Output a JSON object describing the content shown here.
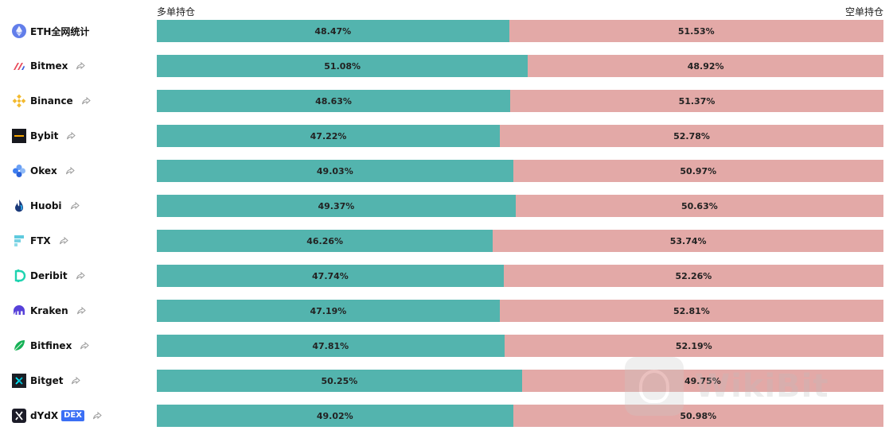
{
  "headers": {
    "long_label": "多单持仓",
    "short_label": "空单持仓"
  },
  "colors": {
    "long": "#53b4ae",
    "short": "#e3a9a7"
  },
  "watermark": {
    "text": "WikiBit"
  },
  "exchanges": [
    {
      "name": "ETH全网统计",
      "icon": "ethereum-icon",
      "long_pct": 48.47,
      "short_pct": 51.53,
      "long_label": "48.47%",
      "short_label": "51.53%",
      "share": false,
      "badge": ""
    },
    {
      "name": "Bitmex",
      "icon": "bitmex-icon",
      "long_pct": 51.08,
      "short_pct": 48.92,
      "long_label": "51.08%",
      "short_label": "48.92%",
      "share": true,
      "badge": ""
    },
    {
      "name": "Binance",
      "icon": "binance-icon",
      "long_pct": 48.63,
      "short_pct": 51.37,
      "long_label": "48.63%",
      "short_label": "51.37%",
      "share": true,
      "badge": ""
    },
    {
      "name": "Bybit",
      "icon": "bybit-icon",
      "long_pct": 47.22,
      "short_pct": 52.78,
      "long_label": "47.22%",
      "short_label": "52.78%",
      "share": true,
      "badge": ""
    },
    {
      "name": "Okex",
      "icon": "okex-icon",
      "long_pct": 49.03,
      "short_pct": 50.97,
      "long_label": "49.03%",
      "short_label": "50.97%",
      "share": true,
      "badge": ""
    },
    {
      "name": "Huobi",
      "icon": "huobi-icon",
      "long_pct": 49.37,
      "short_pct": 50.63,
      "long_label": "49.37%",
      "short_label": "50.63%",
      "share": true,
      "badge": ""
    },
    {
      "name": "FTX",
      "icon": "ftx-icon",
      "long_pct": 46.26,
      "short_pct": 53.74,
      "long_label": "46.26%",
      "short_label": "53.74%",
      "share": true,
      "badge": ""
    },
    {
      "name": "Deribit",
      "icon": "deribit-icon",
      "long_pct": 47.74,
      "short_pct": 52.26,
      "long_label": "47.74%",
      "short_label": "52.26%",
      "share": true,
      "badge": ""
    },
    {
      "name": "Kraken",
      "icon": "kraken-icon",
      "long_pct": 47.19,
      "short_pct": 52.81,
      "long_label": "47.19%",
      "short_label": "52.81%",
      "share": true,
      "badge": ""
    },
    {
      "name": "Bitfinex",
      "icon": "bitfinex-icon",
      "long_pct": 47.81,
      "short_pct": 52.19,
      "long_label": "47.81%",
      "short_label": "52.19%",
      "share": true,
      "badge": ""
    },
    {
      "name": "Bitget",
      "icon": "bitget-icon",
      "long_pct": 50.25,
      "short_pct": 49.75,
      "long_label": "50.25%",
      "short_label": "49.75%",
      "share": true,
      "badge": ""
    },
    {
      "name": "dYdX",
      "icon": "dydx-icon",
      "long_pct": 49.02,
      "short_pct": 50.98,
      "long_label": "49.02%",
      "short_label": "50.98%",
      "share": true,
      "badge": "DEX"
    }
  ]
}
